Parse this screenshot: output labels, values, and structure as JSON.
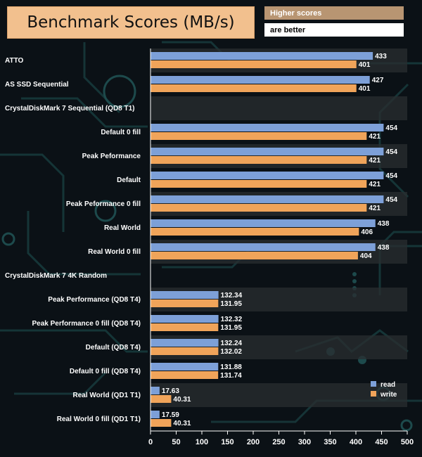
{
  "note": {
    "line1": "Higher scores",
    "line2": "are better"
  },
  "colors": {
    "read": "#7da0d8",
    "write": "#f0a45a",
    "background": "#0b1116",
    "stripe": "#2a2d30"
  },
  "chart_data": {
    "type": "bar",
    "orientation": "horizontal",
    "title": "Benchmark Scores (MB/s)",
    "categories": [
      "ATTO",
      "AS SSD Sequential",
      "CrystalDiskMark 7 Sequential (QD8 T1)",
      "Default 0 fill",
      "Peak Peformance",
      "Default",
      "Peak Peformance 0 fill",
      "Real World",
      "Real World 0 fill",
      "CrystalDiskMark 7 4K Random",
      "Peak Performance (QD8 T4)",
      "Peak Performance 0 fill (QD8 T4)",
      "Default (QD8 T4)",
      "Default 0 fill (QD8 T4)",
      "Real World (QD1 T1)",
      "Real World 0 fill (QD1 T1)"
    ],
    "series": [
      {
        "name": "read",
        "values": [
          433,
          427,
          null,
          454,
          454,
          454,
          454,
          438,
          438,
          null,
          132.34,
          132.32,
          132.24,
          131.88,
          17.63,
          17.59
        ],
        "labels": [
          "433",
          "427",
          "",
          "454",
          "454",
          "454",
          "454",
          "438",
          "438",
          "",
          "132.34",
          "132.32",
          "132.24",
          "131.88",
          "17.63",
          "17.59"
        ]
      },
      {
        "name": "write",
        "values": [
          401,
          401,
          null,
          421,
          421,
          421,
          421,
          406,
          404,
          null,
          131.95,
          131.95,
          132.02,
          131.74,
          40.31,
          40.31
        ],
        "labels": [
          "401",
          "401",
          "",
          "421",
          "421",
          "421",
          "421",
          "406",
          "404",
          "",
          "131.95",
          "131.95",
          "132.02",
          "131.74",
          "40.31",
          "40.31"
        ]
      }
    ],
    "xlim": [
      0,
      500
    ],
    "xticks": [
      "0",
      "50",
      "100",
      "150",
      "200",
      "250",
      "300",
      "350",
      "400",
      "450",
      "500"
    ],
    "legend": "bottom-right",
    "grid": false
  }
}
